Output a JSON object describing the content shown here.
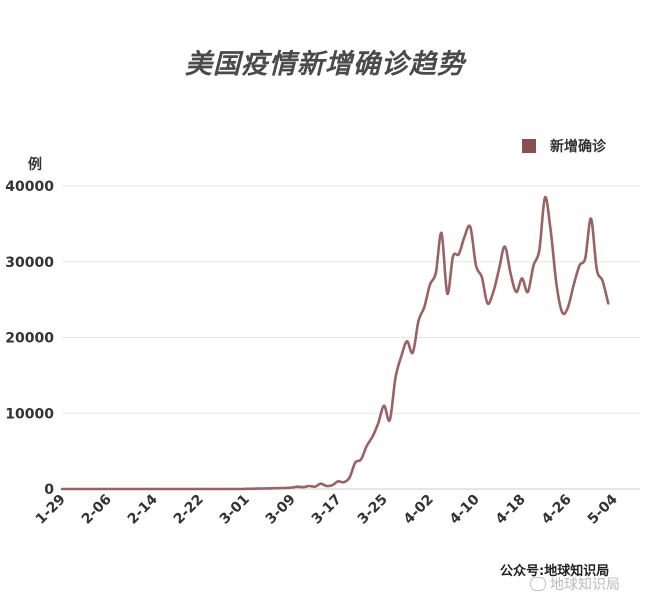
{
  "chart_data": {
    "type": "line",
    "title": "美国疫情新增确诊趋势",
    "ylabel": "例",
    "ylim": [
      0,
      40000
    ],
    "yticks": [
      0,
      10000,
      20000,
      30000,
      40000
    ],
    "ytick_labels": [
      "0",
      "10000",
      "20000",
      "30000",
      "40000"
    ],
    "xtick_labels": [
      "1-29",
      "2-06",
      "2-14",
      "2-22",
      "3-01",
      "3-09",
      "3-17",
      "3-25",
      "4-02",
      "4-10",
      "4-18",
      "4-26",
      "5-04"
    ],
    "grid": true,
    "legend_position": "top-right",
    "series": [
      {
        "name": "新增确诊",
        "color": "#9a6262",
        "values": [
          0,
          0,
          0,
          0,
          0,
          0,
          0,
          0,
          0,
          0,
          0,
          0,
          0,
          0,
          0,
          0,
          0,
          0,
          0,
          0,
          0,
          0,
          0,
          0,
          0,
          0,
          0,
          0,
          0,
          0,
          0,
          0,
          20,
          30,
          50,
          60,
          80,
          100,
          120,
          150,
          200,
          300,
          250,
          400,
          300,
          700,
          400,
          500,
          1000,
          900,
          1500,
          3500,
          3900,
          5700,
          6900,
          8700,
          11000,
          9100,
          14700,
          17500,
          19500,
          18000,
          22200,
          24000,
          27000,
          28500,
          33800,
          25800,
          30700,
          31000,
          33300,
          34600,
          29500,
          28000,
          24500,
          26000,
          29000,
          32000,
          28500,
          26000,
          27800,
          26000,
          29500,
          31500,
          38500,
          34000,
          27000,
          23300,
          24000,
          27000,
          29500,
          30500,
          35700,
          29000,
          27500,
          24500
        ]
      }
    ]
  },
  "legend": {
    "label": "新增确诊",
    "color": "#8a4f4f"
  },
  "footer": {
    "source": "公众号:地球知识局",
    "watermark": "地球知识局"
  }
}
